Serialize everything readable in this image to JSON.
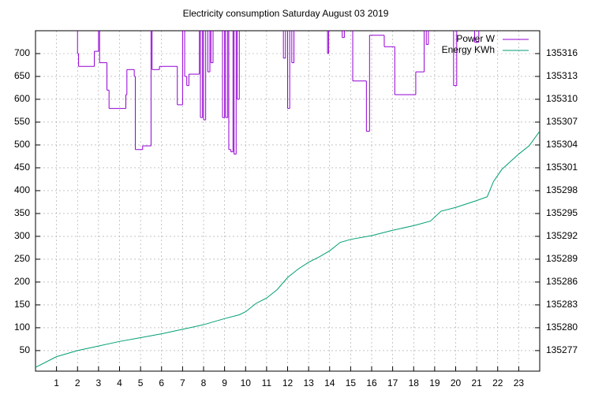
{
  "chart_data": {
    "type": "line",
    "title": "Electricity consumption Saturday August 03 2019",
    "xlim": [
      0,
      24
    ],
    "xticks": [
      1,
      2,
      3,
      4,
      5,
      6,
      7,
      8,
      9,
      10,
      11,
      12,
      13,
      14,
      15,
      16,
      17,
      18,
      19,
      20,
      21,
      22,
      23
    ],
    "ylim": [
      5,
      750
    ],
    "yticks": [
      50,
      100,
      150,
      200,
      250,
      300,
      350,
      400,
      450,
      500,
      550,
      600,
      650,
      700
    ],
    "y2lim": [
      135274.3,
      135319
    ],
    "y2ticks": [
      135277,
      135280,
      135283,
      135286,
      135289,
      135292,
      135295,
      135298,
      135301,
      135304,
      135307,
      135310,
      135313,
      135316
    ],
    "grid": true,
    "legend": "top-right",
    "series": [
      {
        "name": "Power W",
        "color": "#9400d3",
        "step": true,
        "x": [
          0,
          2.0,
          2.05,
          2.8,
          3.0,
          3.05,
          3.4,
          3.5,
          4.3,
          4.35,
          4.7,
          4.75,
          5.1,
          5.5,
          5.55,
          5.9,
          6.75,
          7.0,
          7.1,
          7.2,
          7.3,
          7.8,
          7.85,
          7.95,
          8.0,
          8.1,
          8.2,
          8.3,
          8.35,
          8.45,
          8.9,
          9.0,
          9.05,
          9.15,
          9.2,
          9.3,
          9.4,
          9.45,
          9.55,
          9.6,
          9.7,
          11.8,
          11.9,
          12.0,
          12.1,
          12.2,
          12.3,
          13.9,
          13.95,
          14.6,
          14.7,
          15.1,
          15.75,
          15.9,
          16.6,
          17.1,
          18.1,
          18.5,
          18.6,
          18.7,
          19.9,
          20.05,
          20.9,
          21.1,
          24
        ],
        "values": [
          760,
          700,
          672,
          705,
          760,
          680,
          620,
          580,
          610,
          665,
          650,
          490,
          498,
          760,
          665,
          672,
          588,
          760,
          650,
          630,
          655,
          760,
          560,
          760,
          555,
          760,
          660,
          760,
          680,
          760,
          560,
          760,
          560,
          760,
          490,
          485,
          760,
          480,
          760,
          600,
          760,
          690,
          760,
          580,
          760,
          680,
          760,
          700,
          760,
          735,
          760,
          640,
          530,
          740,
          715,
          610,
          660,
          760,
          720,
          760,
          630,
          760,
          725,
          760,
          760
        ]
      },
      {
        "name": "Energy KWh",
        "color": "#009e73",
        "axis": "y2",
        "x": [
          0,
          1,
          2,
          3,
          4,
          5,
          6,
          7,
          8,
          9,
          9.7,
          10,
          10.5,
          11,
          11.5,
          12,
          12.5,
          13,
          13.5,
          14,
          14.5,
          15,
          16,
          17,
          18,
          18.8,
          19.3,
          20,
          21,
          21.5,
          21.8,
          22.2,
          23,
          23.5,
          24
        ],
        "values": [
          135274.8,
          135276.2,
          135277.0,
          135277.6,
          135278.2,
          135278.7,
          135279.2,
          135279.8,
          135280.4,
          135281.2,
          135281.7,
          135282.1,
          135283.2,
          135283.9,
          135285.0,
          135286.6,
          135287.7,
          135288.6,
          135289.3,
          135290.1,
          135291.2,
          135291.6,
          135292.1,
          135292.8,
          135293.4,
          135294.0,
          135295.3,
          135295.8,
          135296.7,
          135297.2,
          135299.2,
          135300.8,
          135302.8,
          135303.9,
          135305.8
        ]
      }
    ]
  }
}
